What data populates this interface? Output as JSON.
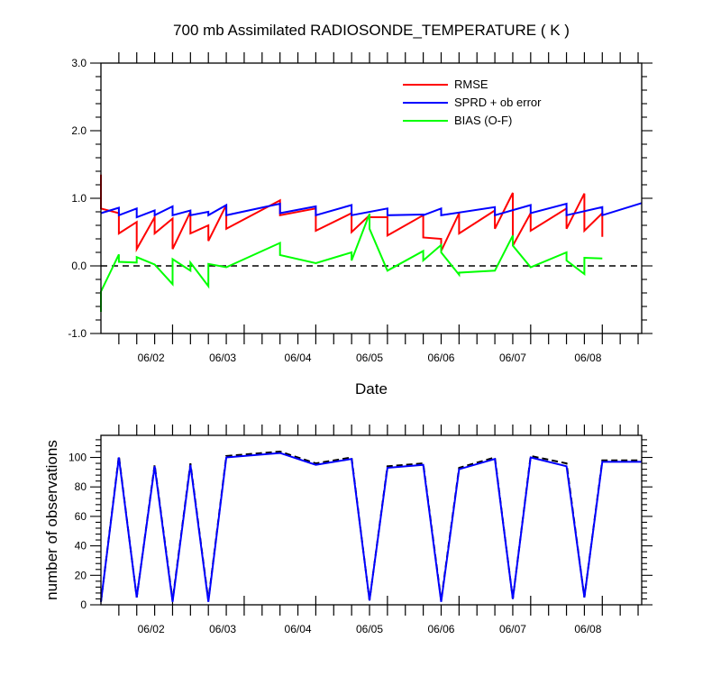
{
  "chart_data": [
    {
      "type": "line",
      "title": "700 mb Assimilated RADIOSONDE_TEMPERATURE ( K )",
      "xlabel": "Date",
      "ylabel": "",
      "xlim": [
        0,
        7.55
      ],
      "ylim": [
        -1.0,
        3.0
      ],
      "yticks": [
        -1.0,
        0.0,
        1.0,
        2.0,
        3.0
      ],
      "ytick_labels": [
        "-1.0",
        "0.0",
        "1.0",
        "2.0",
        "3.0"
      ],
      "xticks": [
        1,
        2,
        3,
        4,
        5,
        6,
        7,
        7.55
      ],
      "xtick_labels": [
        "06/02",
        "06/03",
        "06/04",
        "06/05",
        "06/06",
        "06/07",
        "06/08"
      ],
      "xtick_label_positions": [
        0.7,
        1.7,
        2.75,
        3.75,
        4.75,
        5.75,
        6.8,
        7.55
      ],
      "zero_line": true,
      "legend": "top-right",
      "series": [
        {
          "name": "RMSE",
          "color": "#ff0000",
          "points": [
            [
              0.0,
              1.35
            ],
            [
              0.0,
              0.85
            ],
            [
              0.25,
              0.78
            ],
            [
              0.25,
              0.48
            ],
            [
              0.5,
              0.65
            ],
            [
              0.5,
              0.25
            ],
            [
              0.75,
              0.72
            ],
            [
              0.75,
              0.48
            ],
            [
              1.0,
              0.7
            ],
            [
              1.0,
              0.25
            ],
            [
              1.25,
              0.8
            ],
            [
              1.25,
              0.48
            ],
            [
              1.5,
              0.6
            ],
            [
              1.5,
              0.37
            ],
            [
              1.75,
              0.9
            ],
            [
              1.75,
              0.55
            ],
            [
              2.5,
              0.97
            ],
            [
              2.5,
              0.75
            ],
            [
              3.0,
              0.85
            ],
            [
              3.0,
              0.52
            ],
            [
              3.5,
              0.78
            ],
            [
              3.5,
              0.5
            ],
            [
              3.75,
              0.75
            ],
            [
              3.75,
              0.72
            ],
            [
              4.0,
              0.72
            ],
            [
              4.0,
              0.45
            ],
            [
              4.5,
              0.75
            ],
            [
              4.5,
              0.42
            ],
            [
              4.75,
              0.4
            ],
            [
              4.75,
              0.22
            ],
            [
              5.0,
              0.78
            ],
            [
              5.0,
              0.48
            ],
            [
              5.5,
              0.82
            ],
            [
              5.5,
              0.55
            ],
            [
              5.75,
              1.08
            ],
            [
              5.75,
              0.3
            ],
            [
              6.0,
              0.78
            ],
            [
              6.0,
              0.52
            ],
            [
              6.5,
              0.85
            ],
            [
              6.5,
              0.55
            ],
            [
              6.75,
              1.07
            ],
            [
              6.75,
              0.52
            ],
            [
              7.0,
              0.78
            ],
            [
              7.0,
              0.43
            ]
          ]
        },
        {
          "name": "SPRD + ob error",
          "color": "#0000ff",
          "points": [
            [
              0.0,
              0.78
            ],
            [
              0.25,
              0.86
            ],
            [
              0.25,
              0.75
            ],
            [
              0.5,
              0.85
            ],
            [
              0.5,
              0.72
            ],
            [
              0.75,
              0.82
            ],
            [
              0.75,
              0.75
            ],
            [
              1.0,
              0.88
            ],
            [
              1.0,
              0.75
            ],
            [
              1.25,
              0.82
            ],
            [
              1.25,
              0.75
            ],
            [
              1.5,
              0.8
            ],
            [
              1.5,
              0.75
            ],
            [
              1.75,
              0.9
            ],
            [
              1.75,
              0.75
            ],
            [
              2.5,
              0.92
            ],
            [
              2.5,
              0.78
            ],
            [
              3.0,
              0.88
            ],
            [
              3.0,
              0.75
            ],
            [
              3.5,
              0.9
            ],
            [
              3.5,
              0.75
            ],
            [
              4.0,
              0.85
            ],
            [
              4.0,
              0.75
            ],
            [
              4.5,
              0.76
            ],
            [
              4.5,
              0.75
            ],
            [
              4.75,
              0.85
            ],
            [
              4.75,
              0.75
            ],
            [
              5.5,
              0.87
            ],
            [
              5.5,
              0.75
            ],
            [
              6.0,
              0.9
            ],
            [
              6.0,
              0.78
            ],
            [
              6.5,
              0.92
            ],
            [
              6.5,
              0.75
            ],
            [
              7.0,
              0.87
            ],
            [
              7.0,
              0.75
            ],
            [
              7.55,
              0.93
            ]
          ]
        },
        {
          "name": "BIAS (O-F)",
          "color": "#00ff00",
          "points": [
            [
              0.0,
              -0.68
            ],
            [
              0.0,
              -0.38
            ],
            [
              0.25,
              0.17
            ],
            [
              0.25,
              0.06
            ],
            [
              0.5,
              0.05
            ],
            [
              0.5,
              0.13
            ],
            [
              0.75,
              0.02
            ],
            [
              1.0,
              -0.27
            ],
            [
              1.0,
              0.1
            ],
            [
              1.25,
              -0.07
            ],
            [
              1.25,
              0.05
            ],
            [
              1.5,
              -0.3
            ],
            [
              1.5,
              0.03
            ],
            [
              1.75,
              -0.02
            ],
            [
              2.5,
              0.34
            ],
            [
              2.5,
              0.16
            ],
            [
              3.0,
              0.04
            ],
            [
              3.5,
              0.2
            ],
            [
              3.5,
              0.08
            ],
            [
              3.75,
              0.77
            ],
            [
              3.75,
              0.55
            ],
            [
              4.0,
              -0.07
            ],
            [
              4.5,
              0.22
            ],
            [
              4.5,
              0.08
            ],
            [
              4.75,
              0.31
            ],
            [
              4.75,
              0.2
            ],
            [
              5.0,
              -0.13
            ],
            [
              5.0,
              -0.1
            ],
            [
              5.5,
              -0.07
            ],
            [
              5.75,
              0.45
            ],
            [
              5.75,
              0.3
            ],
            [
              6.0,
              -0.02
            ],
            [
              6.5,
              0.2
            ],
            [
              6.5,
              0.08
            ],
            [
              6.75,
              -0.12
            ],
            [
              6.75,
              0.12
            ],
            [
              7.0,
              0.11
            ]
          ]
        }
      ]
    },
    {
      "type": "line",
      "title": "",
      "xlabel": "",
      "ylabel": "number of observations",
      "xlim": [
        0,
        7.55
      ],
      "ylim": [
        0,
        115
      ],
      "yticks": [
        0,
        20,
        40,
        60,
        80,
        100
      ],
      "ytick_labels": [
        "0",
        "20",
        "40",
        "60",
        "80",
        "100"
      ],
      "xticks": [
        1,
        2,
        3,
        4,
        5,
        6,
        7,
        7.55
      ],
      "xtick_labels": [
        "06/02",
        "06/03",
        "06/04",
        "06/05",
        "06/06",
        "06/07",
        "06/08"
      ],
      "xtick_label_positions": [
        0.7,
        1.7,
        2.75,
        3.75,
        4.75,
        5.75,
        6.8,
        7.55
      ],
      "series": [
        {
          "style": "dashed",
          "color": "#000000",
          "points": [
            [
              0.0,
              2
            ],
            [
              0.25,
              101
            ],
            [
              0.5,
              5
            ],
            [
              0.75,
              95
            ],
            [
              1.0,
              3
            ],
            [
              1.25,
              96
            ],
            [
              1.5,
              3
            ],
            [
              1.75,
              101
            ],
            [
              2.5,
              104
            ],
            [
              3.0,
              96
            ],
            [
              3.5,
              100
            ],
            [
              3.75,
              3
            ],
            [
              4.0,
              94
            ],
            [
              4.5,
              96
            ],
            [
              4.75,
              3
            ],
            [
              5.0,
              93
            ],
            [
              5.5,
              100
            ],
            [
              5.75,
              4
            ],
            [
              6.0,
              101
            ],
            [
              6.5,
              96
            ],
            [
              6.75,
              5
            ],
            [
              7.0,
              98
            ],
            [
              7.55,
              98
            ]
          ]
        },
        {
          "style": "solid",
          "color": "#0000ff",
          "points": [
            [
              0.0,
              2
            ],
            [
              0.25,
              100
            ],
            [
              0.5,
              5
            ],
            [
              0.75,
              94
            ],
            [
              1.0,
              2
            ],
            [
              1.25,
              95
            ],
            [
              1.5,
              2
            ],
            [
              1.75,
              100
            ],
            [
              2.5,
              103
            ],
            [
              3.0,
              95
            ],
            [
              3.5,
              99
            ],
            [
              3.75,
              3
            ],
            [
              4.0,
              93
            ],
            [
              4.5,
              95
            ],
            [
              4.75,
              2
            ],
            [
              5.0,
              92
            ],
            [
              5.5,
              99
            ],
            [
              5.75,
              4
            ],
            [
              6.0,
              100
            ],
            [
              6.5,
              94
            ],
            [
              6.75,
              5
            ],
            [
              7.0,
              97
            ],
            [
              7.55,
              97
            ]
          ]
        }
      ]
    }
  ]
}
